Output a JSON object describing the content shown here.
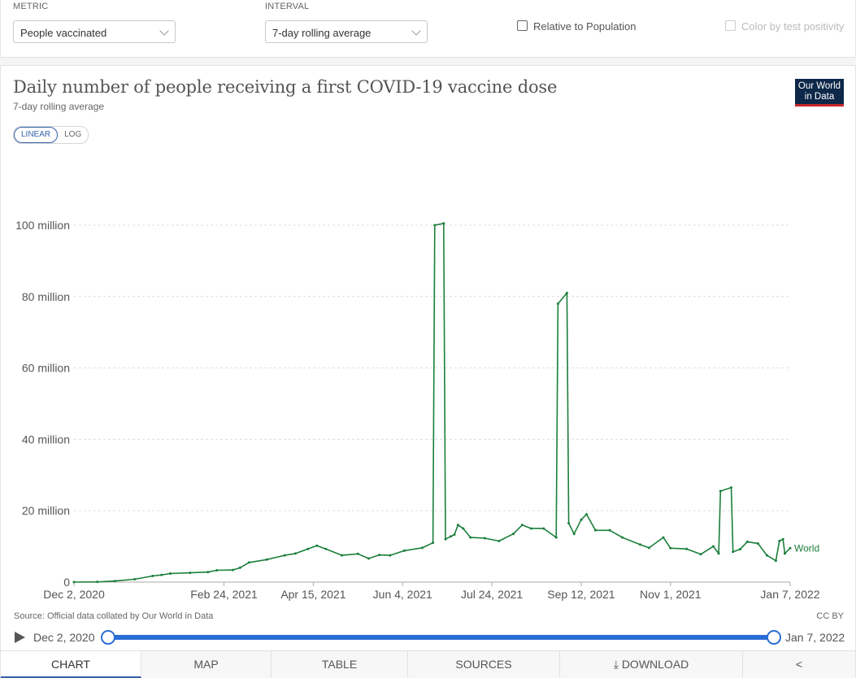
{
  "controls": {
    "metric": {
      "label": "METRIC",
      "value": "People vaccinated"
    },
    "interval": {
      "label": "INTERVAL",
      "value": "7-day rolling average"
    },
    "relative_population": "Relative to Population",
    "color_by_test": "Color by test positivity"
  },
  "header": {
    "title": "Daily number of people receiving a first COVID-19 vaccine dose",
    "subtitle": "7-day rolling average",
    "logo_line1": "Our World",
    "logo_line2": "in Data"
  },
  "scale_toggle": {
    "linear": "LINEAR",
    "log": "LOG"
  },
  "footer": {
    "source": "Source: Official data collated by Our World in Data",
    "license": "CC BY"
  },
  "timeline": {
    "start": "Dec 2, 2020",
    "end": "Jan 7, 2022"
  },
  "tabs": [
    "CHART",
    "MAP",
    "TABLE",
    "SOURCES",
    "DOWNLOAD"
  ],
  "chart_data": {
    "type": "line",
    "title": "Daily number of people receiving a first COVID-19 vaccine dose",
    "subtitle": "7-day rolling average",
    "ylim": [
      0,
      100000000
    ],
    "y_ticks": [
      0,
      20000000,
      40000000,
      60000000,
      80000000,
      100000000
    ],
    "y_tick_labels": [
      "0",
      "20 million",
      "40 million",
      "60 million",
      "80 million",
      "100 million"
    ],
    "x_range": [
      "2020-12-02",
      "2022-01-07"
    ],
    "x_ticks": [
      "2020-12-02",
      "2021-02-24",
      "2021-04-15",
      "2021-06-04",
      "2021-07-24",
      "2021-09-12",
      "2021-11-01",
      "2022-01-07"
    ],
    "x_tick_labels": [
      "Dec 2, 2020",
      "Feb 24, 2021",
      "Apr 15, 2021",
      "Jun 4, 2021",
      "Jul 24, 2021",
      "Sep 12, 2021",
      "Nov 1, 2021",
      "Jan 7, 2022"
    ],
    "grid": true,
    "series": [
      {
        "name": "World",
        "color": "#1b7f3b",
        "points": [
          [
            "2020-12-02",
            0
          ],
          [
            "2020-12-15",
            50000
          ],
          [
            "2020-12-25",
            300000
          ],
          [
            "2021-01-05",
            800000
          ],
          [
            "2021-01-15",
            1700000
          ],
          [
            "2021-01-20",
            2000000
          ],
          [
            "2021-01-25",
            2400000
          ],
          [
            "2021-02-05",
            2600000
          ],
          [
            "2021-02-15",
            2800000
          ],
          [
            "2021-02-20",
            3300000
          ],
          [
            "2021-03-01",
            3400000
          ],
          [
            "2021-03-05",
            4000000
          ],
          [
            "2021-03-10",
            5500000
          ],
          [
            "2021-03-20",
            6300000
          ],
          [
            "2021-03-30",
            7500000
          ],
          [
            "2021-04-05",
            8000000
          ],
          [
            "2021-04-12",
            9300000
          ],
          [
            "2021-04-17",
            10200000
          ],
          [
            "2021-04-22",
            9300000
          ],
          [
            "2021-05-01",
            7500000
          ],
          [
            "2021-05-10",
            7900000
          ],
          [
            "2021-05-16",
            6600000
          ],
          [
            "2021-05-22",
            7600000
          ],
          [
            "2021-05-28",
            7500000
          ],
          [
            "2021-06-05",
            8800000
          ],
          [
            "2021-06-15",
            9600000
          ],
          [
            "2021-06-21",
            11000000
          ],
          [
            "2021-06-22",
            100000000
          ],
          [
            "2021-06-27",
            100500000
          ],
          [
            "2021-06-28",
            12000000
          ],
          [
            "2021-07-01",
            12800000
          ],
          [
            "2021-07-03",
            13300000
          ],
          [
            "2021-07-05",
            16000000
          ],
          [
            "2021-07-08",
            15000000
          ],
          [
            "2021-07-12",
            12500000
          ],
          [
            "2021-07-20",
            12300000
          ],
          [
            "2021-07-28",
            11500000
          ],
          [
            "2021-08-05",
            13500000
          ],
          [
            "2021-08-10",
            16000000
          ],
          [
            "2021-08-15",
            15000000
          ],
          [
            "2021-08-22",
            15000000
          ],
          [
            "2021-08-29",
            12500000
          ],
          [
            "2021-08-30",
            78000000
          ],
          [
            "2021-09-04",
            81000000
          ],
          [
            "2021-09-05",
            16500000
          ],
          [
            "2021-09-08",
            13500000
          ],
          [
            "2021-09-12",
            17500000
          ],
          [
            "2021-09-15",
            19000000
          ],
          [
            "2021-09-20",
            14500000
          ],
          [
            "2021-09-28",
            14500000
          ],
          [
            "2021-10-05",
            12500000
          ],
          [
            "2021-10-15",
            10500000
          ],
          [
            "2021-10-20",
            9600000
          ],
          [
            "2021-10-28",
            12500000
          ],
          [
            "2021-11-01",
            9500000
          ],
          [
            "2021-11-10",
            9300000
          ],
          [
            "2021-11-18",
            7800000
          ],
          [
            "2021-11-25",
            10000000
          ],
          [
            "2021-11-28",
            8000000
          ],
          [
            "2021-11-29",
            25500000
          ],
          [
            "2021-12-05",
            26500000
          ],
          [
            "2021-12-06",
            8500000
          ],
          [
            "2021-12-10",
            9200000
          ],
          [
            "2021-12-14",
            11300000
          ],
          [
            "2021-12-20",
            10800000
          ],
          [
            "2021-12-25",
            7500000
          ],
          [
            "2021-12-30",
            6000000
          ],
          [
            "2022-01-01",
            11500000
          ],
          [
            "2022-01-03",
            12000000
          ],
          [
            "2022-01-04",
            8000000
          ],
          [
            "2022-01-07",
            9500000
          ]
        ]
      }
    ]
  }
}
